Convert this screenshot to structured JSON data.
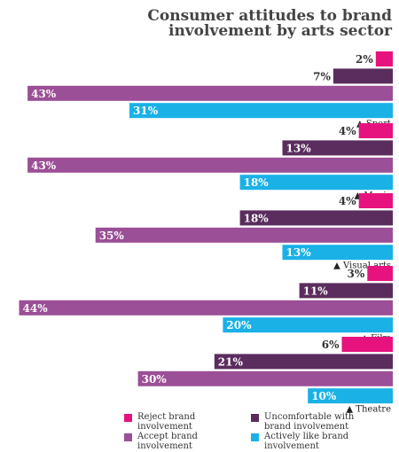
{
  "title_line1": "Consumer attitudes to brand",
  "title_line2": "involvement by arts sector",
  "colors": {
    "reject": "#e6137e",
    "uncomfortable": "#5b2d5e",
    "accept": "#9b4f96",
    "actively_like": "#1ab1e6"
  },
  "legend": [
    {
      "key": "reject",
      "label": "Reject brand involvement"
    },
    {
      "key": "uncomfortable",
      "label": "Uncomfortable with brand involvement"
    },
    {
      "key": "accept",
      "label": "Accept brand involvement"
    },
    {
      "key": "actively_like",
      "label": "Actively like brand involvement"
    }
  ],
  "chart_data": {
    "type": "bar",
    "orientation": "horizontal",
    "title": "Consumer attitudes to brand involvement by arts sector",
    "categories": [
      "Sport",
      "Music",
      "Visual arts",
      "Film",
      "Theatre"
    ],
    "category_marker": "▲",
    "series": [
      {
        "name": "Reject brand involvement",
        "key": "reject",
        "values": [
          2,
          4,
          4,
          3,
          6
        ]
      },
      {
        "name": "Uncomfortable with brand involvement",
        "key": "uncomfortable",
        "values": [
          7,
          13,
          18,
          11,
          21
        ]
      },
      {
        "name": "Accept brand involvement",
        "key": "accept",
        "values": [
          43,
          43,
          35,
          44,
          30
        ]
      },
      {
        "name": "Actively like brand involvement",
        "key": "actively_like",
        "values": [
          31,
          18,
          13,
          20,
          10
        ]
      }
    ],
    "value_suffix": "%",
    "legend_position": "bottom",
    "grid": false
  }
}
